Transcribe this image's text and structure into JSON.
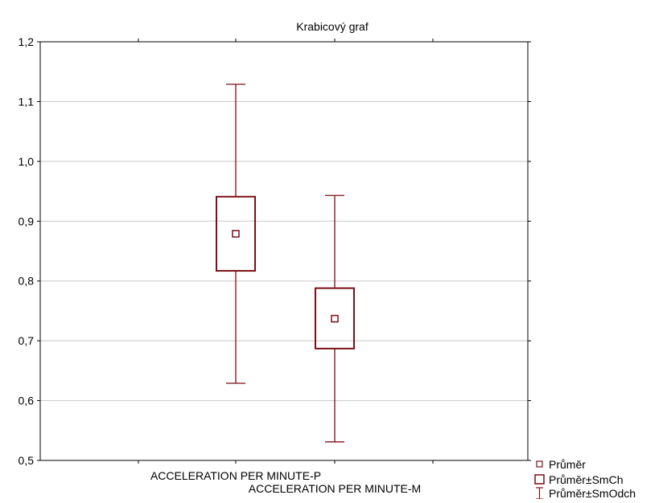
{
  "chart_data": {
    "type": "box",
    "title": "Krabicový graf",
    "xlabel": "",
    "ylabel": "",
    "ylim": [
      0.5,
      1.2
    ],
    "yticks": [
      0.5,
      0.6,
      0.7,
      0.8,
      0.9,
      1.0,
      1.1,
      1.2
    ],
    "ytick_labels": [
      "0,5",
      "0,6",
      "0,7",
      "0,8",
      "0,9",
      "1,0",
      "1,1",
      "1,2"
    ],
    "grid": true,
    "legend_position": "bottom-right",
    "categories": [
      "ACCELERATION PER MINUTE-P",
      "ACCELERATION PER MINUTE-M"
    ],
    "series": [
      {
        "category": "ACCELERATION PER MINUTE-P",
        "mean": 0.879,
        "se_low": 0.817,
        "se_high": 0.941,
        "sd_low": 0.629,
        "sd_high": 1.129
      },
      {
        "category": "ACCELERATION PER MINUTE-M",
        "mean": 0.737,
        "se_low": 0.687,
        "se_high": 0.788,
        "sd_low": 0.531,
        "sd_high": 0.943
      }
    ],
    "legend": [
      {
        "label": "Průměr",
        "symbol": "small-square"
      },
      {
        "label": "Průměr±SmCh",
        "symbol": "box"
      },
      {
        "label": "Průměr±SmOdch",
        "symbol": "whisker"
      }
    ],
    "colors": {
      "series": "#7b0f16",
      "grid": "#c8c8c8",
      "axis": "#000000"
    }
  }
}
